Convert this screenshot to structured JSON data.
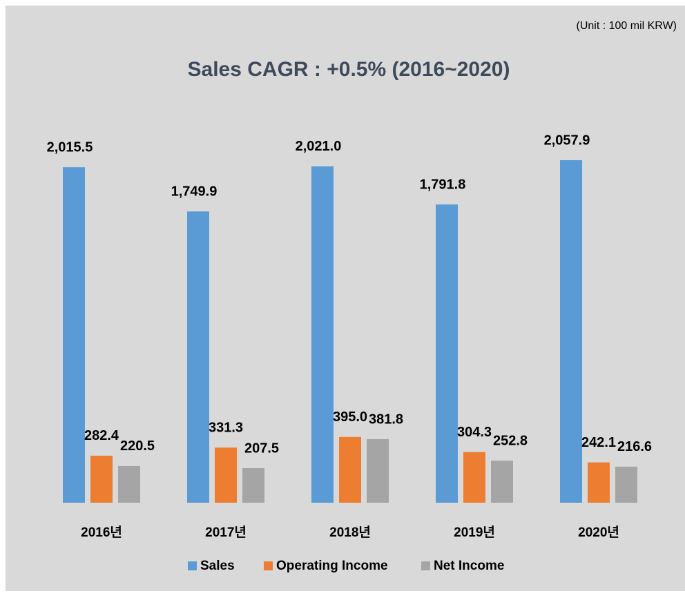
{
  "chart_data": {
    "type": "bar",
    "title": "Sales CAGR : +0.5%  (2016~2020)",
    "subtitle": "(Unit : 100 mil KRW)",
    "categories": [
      "2016년",
      "2017년",
      "2018년",
      "2019년",
      "2020년"
    ],
    "series": [
      {
        "name": "Sales",
        "color": "#5b9bd5",
        "values": [
          2015.5,
          1749.9,
          2021.0,
          1791.8,
          2057.9
        ],
        "value_labels": [
          "2,015.5",
          "1,749.9",
          "2,021.0",
          "1,791.8",
          "2,057.9"
        ]
      },
      {
        "name": "Operating Income",
        "color": "#ed7d31",
        "values": [
          282.4,
          331.3,
          395.0,
          304.3,
          242.1
        ],
        "value_labels": [
          "282.4",
          "331.3",
          "395.0",
          "304.3",
          "242.1"
        ]
      },
      {
        "name": "Net Income",
        "color": "#a5a5a5",
        "values": [
          220.5,
          207.5,
          381.8,
          252.8,
          216.6
        ],
        "value_labels": [
          "220.5",
          "207.5",
          "381.8",
          "252.8",
          "216.6"
        ]
      }
    ],
    "legend": "bottom"
  }
}
